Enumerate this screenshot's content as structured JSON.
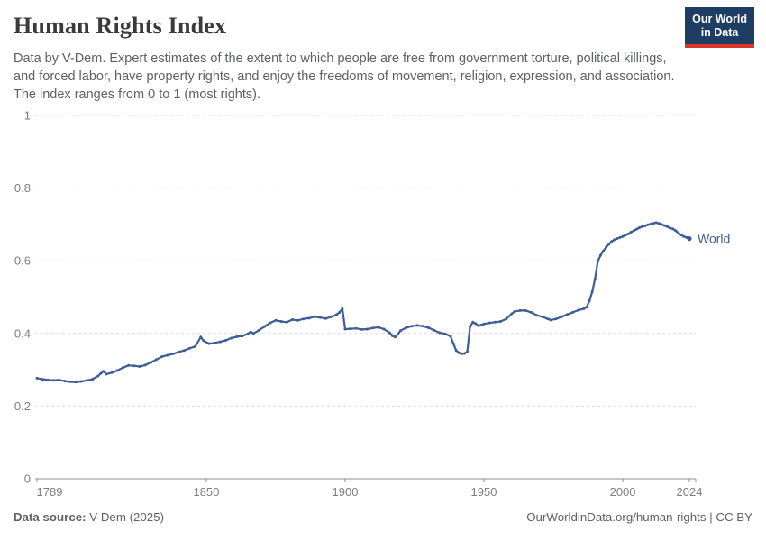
{
  "header": {
    "title": "Human Rights Index",
    "subtitle": "Data by V-Dem. Expert estimates of the extent to which people are free from government torture, political killings, and forced labor, have property rights, and enjoy the freedoms of movement, religion, expression, and association. The index ranges from 0 to 1 (most rights).",
    "logo": {
      "line1": "Our World",
      "line2": "in Data"
    }
  },
  "footer": {
    "source_label": "Data source:",
    "source_value": " V-Dem (2025)",
    "rights": "OurWorldinData.org/human-rights | CC BY"
  },
  "colors": {
    "line": "#3e5c95",
    "series_label": "#3e5c95",
    "grid": "#dcdcdc",
    "axis": "#8f8f8f",
    "tick_label": "#7d7d7d",
    "logo_bg": "#1d3d63",
    "logo_red": "#d9352a"
  },
  "chart_data": {
    "type": "line",
    "title": "Human Rights Index",
    "xlabel": "",
    "ylabel": "",
    "x_domain": [
      1789,
      2024
    ],
    "y_domain": [
      0,
      1
    ],
    "x_ticks": [
      1789,
      1850,
      1900,
      1950,
      2000,
      2024
    ],
    "y_ticks": [
      0,
      0.2,
      0.4,
      0.6,
      0.8,
      1
    ],
    "grid": "horizontal-dashed",
    "legend": "line-end-label",
    "series": [
      {
        "name": "World",
        "points": [
          [
            1789,
            0.277
          ],
          [
            1791,
            0.274
          ],
          [
            1793,
            0.272
          ],
          [
            1795,
            0.271
          ],
          [
            1797,
            0.272
          ],
          [
            1799,
            0.269
          ],
          [
            1801,
            0.267
          ],
          [
            1803,
            0.266
          ],
          [
            1805,
            0.268
          ],
          [
            1807,
            0.271
          ],
          [
            1809,
            0.274
          ],
          [
            1811,
            0.283
          ],
          [
            1812,
            0.29
          ],
          [
            1813,
            0.296
          ],
          [
            1814,
            0.288
          ],
          [
            1816,
            0.292
          ],
          [
            1818,
            0.298
          ],
          [
            1820,
            0.306
          ],
          [
            1822,
            0.312
          ],
          [
            1824,
            0.311
          ],
          [
            1826,
            0.309
          ],
          [
            1828,
            0.313
          ],
          [
            1830,
            0.32
          ],
          [
            1832,
            0.328
          ],
          [
            1834,
            0.336
          ],
          [
            1836,
            0.34
          ],
          [
            1838,
            0.344
          ],
          [
            1840,
            0.349
          ],
          [
            1842,
            0.353
          ],
          [
            1844,
            0.359
          ],
          [
            1846,
            0.364
          ],
          [
            1848,
            0.39
          ],
          [
            1849,
            0.38
          ],
          [
            1851,
            0.372
          ],
          [
            1853,
            0.374
          ],
          [
            1855,
            0.377
          ],
          [
            1857,
            0.381
          ],
          [
            1859,
            0.387
          ],
          [
            1861,
            0.391
          ],
          [
            1863,
            0.393
          ],
          [
            1865,
            0.399
          ],
          [
            1866,
            0.404
          ],
          [
            1867,
            0.4
          ],
          [
            1869,
            0.409
          ],
          [
            1871,
            0.419
          ],
          [
            1873,
            0.429
          ],
          [
            1875,
            0.436
          ],
          [
            1877,
            0.433
          ],
          [
            1879,
            0.431
          ],
          [
            1881,
            0.438
          ],
          [
            1883,
            0.436
          ],
          [
            1885,
            0.44
          ],
          [
            1887,
            0.442
          ],
          [
            1889,
            0.446
          ],
          [
            1891,
            0.444
          ],
          [
            1893,
            0.441
          ],
          [
            1895,
            0.446
          ],
          [
            1897,
            0.452
          ],
          [
            1898,
            0.458
          ],
          [
            1899,
            0.468
          ],
          [
            1900,
            0.412
          ],
          [
            1902,
            0.413
          ],
          [
            1904,
            0.414
          ],
          [
            1906,
            0.411
          ],
          [
            1908,
            0.412
          ],
          [
            1910,
            0.415
          ],
          [
            1912,
            0.417
          ],
          [
            1914,
            0.412
          ],
          [
            1916,
            0.402
          ],
          [
            1917,
            0.394
          ],
          [
            1918,
            0.39
          ],
          [
            1919,
            0.398
          ],
          [
            1920,
            0.408
          ],
          [
            1922,
            0.416
          ],
          [
            1924,
            0.42
          ],
          [
            1926,
            0.422
          ],
          [
            1928,
            0.42
          ],
          [
            1930,
            0.416
          ],
          [
            1932,
            0.409
          ],
          [
            1934,
            0.402
          ],
          [
            1936,
            0.399
          ],
          [
            1938,
            0.392
          ],
          [
            1939,
            0.372
          ],
          [
            1940,
            0.353
          ],
          [
            1941,
            0.347
          ],
          [
            1942,
            0.344
          ],
          [
            1943,
            0.345
          ],
          [
            1944,
            0.35
          ],
          [
            1945,
            0.418
          ],
          [
            1946,
            0.431
          ],
          [
            1947,
            0.427
          ],
          [
            1948,
            0.421
          ],
          [
            1949,
            0.423
          ],
          [
            1950,
            0.426
          ],
          [
            1952,
            0.429
          ],
          [
            1954,
            0.431
          ],
          [
            1956,
            0.433
          ],
          [
            1958,
            0.44
          ],
          [
            1960,
            0.454
          ],
          [
            1961,
            0.46
          ],
          [
            1963,
            0.463
          ],
          [
            1965,
            0.463
          ],
          [
            1967,
            0.458
          ],
          [
            1969,
            0.45
          ],
          [
            1971,
            0.446
          ],
          [
            1973,
            0.44
          ],
          [
            1974,
            0.437
          ],
          [
            1976,
            0.44
          ],
          [
            1978,
            0.446
          ],
          [
            1980,
            0.452
          ],
          [
            1982,
            0.458
          ],
          [
            1984,
            0.464
          ],
          [
            1986,
            0.468
          ],
          [
            1987,
            0.472
          ],
          [
            1988,
            0.49
          ],
          [
            1989,
            0.515
          ],
          [
            1990,
            0.55
          ],
          [
            1991,
            0.598
          ],
          [
            1992,
            0.615
          ],
          [
            1993,
            0.627
          ],
          [
            1994,
            0.637
          ],
          [
            1995,
            0.646
          ],
          [
            1996,
            0.653
          ],
          [
            1997,
            0.658
          ],
          [
            1998,
            0.661
          ],
          [
            1999,
            0.664
          ],
          [
            2000,
            0.667
          ],
          [
            2001,
            0.671
          ],
          [
            2002,
            0.674
          ],
          [
            2003,
            0.679
          ],
          [
            2004,
            0.683
          ],
          [
            2005,
            0.687
          ],
          [
            2006,
            0.691
          ],
          [
            2007,
            0.694
          ],
          [
            2008,
            0.696
          ],
          [
            2009,
            0.699
          ],
          [
            2010,
            0.701
          ],
          [
            2011,
            0.703
          ],
          [
            2012,
            0.705
          ],
          [
            2013,
            0.703
          ],
          [
            2014,
            0.7
          ],
          [
            2015,
            0.697
          ],
          [
            2016,
            0.694
          ],
          [
            2017,
            0.69
          ],
          [
            2018,
            0.688
          ],
          [
            2019,
            0.683
          ],
          [
            2020,
            0.677
          ],
          [
            2021,
            0.671
          ],
          [
            2022,
            0.667
          ],
          [
            2023,
            0.664
          ],
          [
            2024,
            0.661
          ]
        ]
      }
    ]
  }
}
